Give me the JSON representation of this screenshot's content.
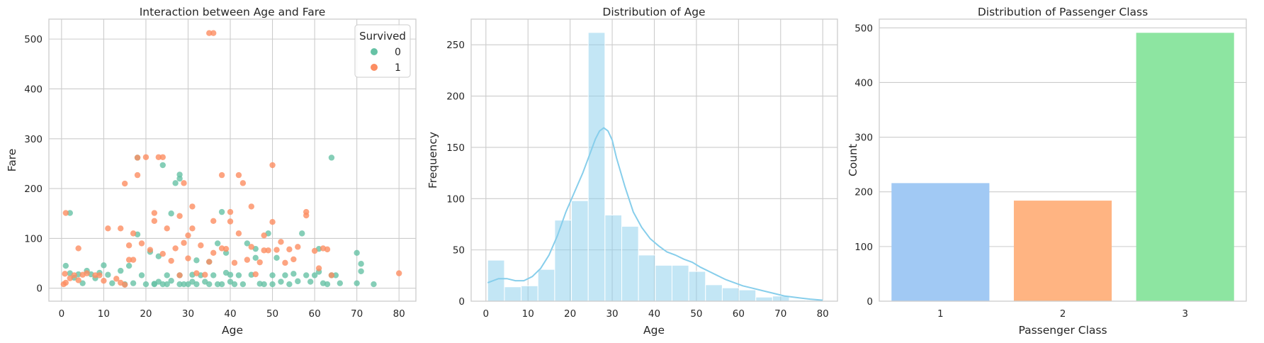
{
  "chart_data": [
    {
      "type": "scatter",
      "title": "Interaction between Age and Fare",
      "xlabel": "Age",
      "ylabel": "Fare",
      "xlim": [
        -3,
        84
      ],
      "ylim": [
        -26,
        540
      ],
      "xticks": [
        0,
        10,
        20,
        30,
        40,
        50,
        60,
        70,
        80
      ],
      "yticks": [
        0,
        100,
        200,
        300,
        400,
        500
      ],
      "grid": true,
      "legend": {
        "title": "Survived",
        "placement": "top-right"
      },
      "series": [
        {
          "name": "0",
          "color": "#66c2a5",
          "points": [
            [
              1,
              45
            ],
            [
              2,
              30
            ],
            [
              2,
              151
            ],
            [
              3,
              21
            ],
            [
              4,
              28
            ],
            [
              5,
              10
            ],
            [
              6,
              35
            ],
            [
              7,
              28
            ],
            [
              8,
              20
            ],
            [
              9,
              31
            ],
            [
              10,
              46
            ],
            [
              11,
              27
            ],
            [
              12,
              10
            ],
            [
              14,
              35
            ],
            [
              15,
              8
            ],
            [
              16,
              45
            ],
            [
              17,
              10
            ],
            [
              18,
              108
            ],
            [
              18,
              262
            ],
            [
              19,
              26
            ],
            [
              20,
              8
            ],
            [
              21,
              73
            ],
            [
              22,
              9
            ],
            [
              22,
              8
            ],
            [
              23,
              13
            ],
            [
              23,
              64
            ],
            [
              24,
              247
            ],
            [
              24,
              8
            ],
            [
              25,
              8
            ],
            [
              25,
              26
            ],
            [
              26,
              15
            ],
            [
              26,
              150
            ],
            [
              27,
              211
            ],
            [
              28,
              8
            ],
            [
              28,
              26
            ],
            [
              28,
              220
            ],
            [
              28,
              228
            ],
            [
              29,
              8
            ],
            [
              30,
              8
            ],
            [
              31,
              27
            ],
            [
              31,
              13
            ],
            [
              32,
              8
            ],
            [
              32,
              56
            ],
            [
              33,
              26
            ],
            [
              34,
              13
            ],
            [
              35,
              8
            ],
            [
              35,
              53
            ],
            [
              36,
              26
            ],
            [
              37,
              8
            ],
            [
              37,
              90
            ],
            [
              38,
              8
            ],
            [
              38,
              153
            ],
            [
              39,
              71
            ],
            [
              39,
              31
            ],
            [
              40,
              27
            ],
            [
              40,
              13
            ],
            [
              41,
              8
            ],
            [
              42,
              26
            ],
            [
              43,
              8
            ],
            [
              44,
              90
            ],
            [
              45,
              27
            ],
            [
              46,
              79
            ],
            [
              46,
              61
            ],
            [
              47,
              9
            ],
            [
              48,
              8
            ],
            [
              49,
              110
            ],
            [
              50,
              8
            ],
            [
              50,
              26
            ],
            [
              51,
              61
            ],
            [
              52,
              13
            ],
            [
              53,
              26
            ],
            [
              54,
              8
            ],
            [
              55,
              29
            ],
            [
              56,
              14
            ],
            [
              57,
              110
            ],
            [
              58,
              26
            ],
            [
              59,
              13
            ],
            [
              60,
              26
            ],
            [
              61,
              33
            ],
            [
              61,
              79
            ],
            [
              62,
              10
            ],
            [
              63,
              8
            ],
            [
              64,
              262
            ],
            [
              64,
              26
            ],
            [
              65,
              26
            ],
            [
              66,
              10
            ],
            [
              70,
              71
            ],
            [
              70,
              10
            ],
            [
              71,
              49
            ],
            [
              71,
              34
            ],
            [
              74,
              8
            ]
          ]
        },
        {
          "name": "1",
          "color": "#fc8d62",
          "points": [
            [
              0.5,
              8
            ],
            [
              0.8,
              29
            ],
            [
              1,
              151
            ],
            [
              1,
              11
            ],
            [
              2,
              20
            ],
            [
              3,
              26
            ],
            [
              4,
              80
            ],
            [
              4,
              16
            ],
            [
              5,
              27
            ],
            [
              6,
              30
            ],
            [
              8,
              26
            ],
            [
              9,
              26
            ],
            [
              10,
              15
            ],
            [
              11,
              120
            ],
            [
              13,
              19
            ],
            [
              14,
              11
            ],
            [
              14,
              120
            ],
            [
              15,
              210
            ],
            [
              15,
              7
            ],
            [
              16,
              57
            ],
            [
              16,
              86
            ],
            [
              17,
              110
            ],
            [
              17,
              57
            ],
            [
              18,
              227
            ],
            [
              18,
              262
            ],
            [
              19,
              90
            ],
            [
              20,
              263
            ],
            [
              21,
              77
            ],
            [
              22,
              151
            ],
            [
              22,
              135
            ],
            [
              23,
              263
            ],
            [
              24,
              263
            ],
            [
              24,
              69
            ],
            [
              25,
              120
            ],
            [
              26,
              55
            ],
            [
              27,
              80
            ],
            [
              28,
              26
            ],
            [
              28,
              145
            ],
            [
              29,
              211
            ],
            [
              29,
              91
            ],
            [
              30,
              60
            ],
            [
              30,
              106
            ],
            [
              31,
              164
            ],
            [
              31,
              120
            ],
            [
              32,
              30
            ],
            [
              33,
              86
            ],
            [
              34,
              27
            ],
            [
              35,
              512
            ],
            [
              35,
              53
            ],
            [
              36,
              512
            ],
            [
              36,
              135
            ],
            [
              36,
              71
            ],
            [
              38,
              227
            ],
            [
              38,
              80
            ],
            [
              39,
              79
            ],
            [
              40,
              153
            ],
            [
              40,
              134
            ],
            [
              41,
              51
            ],
            [
              42,
              227
            ],
            [
              42,
              110
            ],
            [
              43,
              211
            ],
            [
              44,
              57
            ],
            [
              45,
              164
            ],
            [
              45,
              83
            ],
            [
              46,
              28
            ],
            [
              47,
              52
            ],
            [
              48,
              106
            ],
            [
              48,
              76
            ],
            [
              49,
              76
            ],
            [
              50,
              247
            ],
            [
              50,
              133
            ],
            [
              51,
              77
            ],
            [
              52,
              93
            ],
            [
              53,
              51
            ],
            [
              54,
              78
            ],
            [
              55,
              58
            ],
            [
              56,
              83
            ],
            [
              58,
              153
            ],
            [
              58,
              146
            ],
            [
              60,
              75
            ],
            [
              61,
              40
            ],
            [
              62,
              80
            ],
            [
              63,
              78
            ],
            [
              64,
              26
            ],
            [
              80,
              30
            ]
          ]
        }
      ]
    },
    {
      "type": "bar",
      "title": "Distribution of Age",
      "xlabel": "Age",
      "ylabel": "Frequency",
      "xlim": [
        -3.5,
        83.5
      ],
      "ylim": [
        0,
        275
      ],
      "xticks": [
        0,
        10,
        20,
        30,
        40,
        50,
        60,
        70,
        80
      ],
      "yticks": [
        0,
        50,
        100,
        150,
        200,
        250
      ],
      "grid": true,
      "bin_edges": [
        0.42,
        4.4,
        8.38,
        12.36,
        16.34,
        20.32,
        24.3,
        28.28,
        32.26,
        36.24,
        40.22,
        44.2,
        48.18,
        52.16,
        56.14,
        60.12,
        64.1,
        68.08,
        72.06,
        76.04,
        80.0
      ],
      "values": [
        40,
        14,
        15,
        31,
        79,
        98,
        262,
        84,
        73,
        45,
        35,
        35,
        29,
        16,
        13,
        11,
        4,
        5,
        1,
        1
      ],
      "color": "#87ceeb",
      "kde": {
        "color": "#87ceeb",
        "x": [
          0.42,
          3,
          5,
          7,
          9,
          11,
          13,
          15,
          17,
          19,
          21,
          23,
          25,
          26,
          27,
          28,
          29,
          30,
          31,
          33,
          35,
          37,
          39,
          41,
          43,
          45,
          47,
          49,
          51,
          53,
          55,
          57,
          59,
          61,
          63,
          65,
          67,
          69,
          71,
          73,
          75,
          77,
          80
        ],
        "y": [
          18,
          22,
          22,
          20,
          20,
          24,
          32,
          45,
          64,
          87,
          106,
          125,
          147,
          158,
          166,
          169,
          166,
          157,
          140,
          112,
          87,
          72,
          61,
          54,
          48,
          45,
          41,
          38,
          33,
          29,
          25,
          21,
          18,
          15,
          13,
          11,
          9,
          7,
          5,
          4,
          3,
          2,
          1
        ]
      }
    },
    {
      "type": "bar",
      "title": "Distribution of Passenger Class",
      "xlabel": "Passenger Class",
      "ylabel": "Count",
      "ylim": [
        0,
        516
      ],
      "yticks": [
        0,
        100,
        200,
        300,
        400,
        500
      ],
      "grid": true,
      "categories": [
        "1",
        "2",
        "3"
      ],
      "values": [
        216,
        184,
        491
      ],
      "colors": [
        "#a1c9f4",
        "#ffb482",
        "#8de5a1"
      ]
    }
  ]
}
